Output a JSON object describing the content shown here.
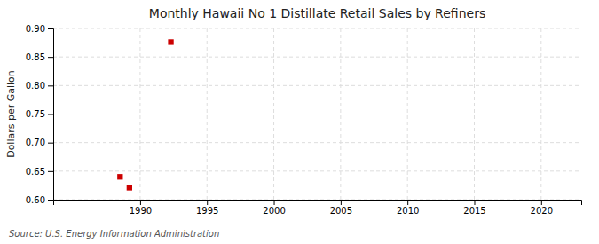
{
  "chart_data": {
    "type": "scatter",
    "title": "Monthly Hawaii No 1 Distillate Retail Sales by Refiners",
    "ylabel": "Dollars per Gallon",
    "source": "Source: U.S. Energy Information Administration",
    "x": [
      1988.5,
      1989.2,
      1992.3
    ],
    "values": [
      0.64,
      0.621,
      0.876
    ],
    "color": "#cc0000",
    "marker": "square",
    "xlim": [
      1983.5,
      2023
    ],
    "ylim": [
      0.6,
      0.9
    ],
    "xticks": [
      1990,
      1995,
      2000,
      2005,
      2010,
      2015,
      2020
    ],
    "yticks": [
      {
        "value": 0.6,
        "label": "0.60"
      },
      0.65,
      {
        "value": 0.7,
        "label": "0.70"
      },
      0.75,
      {
        "value": 0.8,
        "label": "0.80"
      },
      0.85,
      {
        "value": 0.9,
        "label": "0.90"
      }
    ],
    "grid": true
  }
}
